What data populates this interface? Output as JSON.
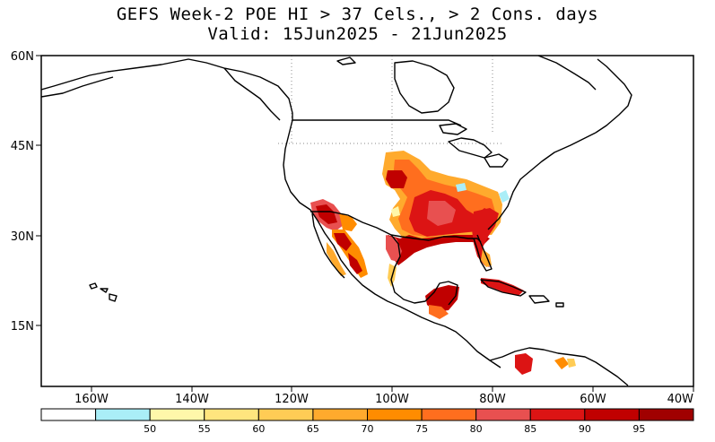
{
  "title": {
    "line1": "GEFS Week-2 POE HI > 37 Cels., > 2 Cons. days",
    "line2": "Valid: 15Jun2025 - 21Jun2025"
  },
  "map": {
    "lon_range": [
      -170,
      -40
    ],
    "lat_range": [
      5,
      60
    ],
    "lat_ticks": [
      "60N",
      "45N",
      "30N",
      "15N"
    ],
    "lon_ticks": [
      "160W",
      "140W",
      "120W",
      "100W",
      "80W",
      "60W",
      "40W"
    ],
    "gridlines": "dotted over land",
    "colors": {
      "coast": "#000000",
      "frame": "#000000",
      "grid": "#a0a0a0"
    }
  },
  "colorbar": {
    "bins": [
      {
        "color": "#ffffff"
      },
      {
        "color": "#aaeef7",
        "label": "50"
      },
      {
        "color": "#fff7aa",
        "label": "55"
      },
      {
        "color": "#ffe57e",
        "label": "60"
      },
      {
        "color": "#ffcc55",
        "label": "65"
      },
      {
        "color": "#ffaa2d",
        "label": "70"
      },
      {
        "color": "#ff8c00",
        "label": "75"
      },
      {
        "color": "#ff6e1e",
        "label": "80"
      },
      {
        "color": "#e85050",
        "label": "85"
      },
      {
        "color": "#dc1414",
        "label": "90"
      },
      {
        "color": "#c00000",
        "label": "95"
      },
      {
        "color": "#a00000"
      }
    ]
  },
  "hotspots": [
    {
      "name": "southern-plains",
      "color": "#dc1414"
    },
    {
      "name": "gulf-coast",
      "color": "#c00000"
    },
    {
      "name": "southwest-desert",
      "color": "#e85050"
    },
    {
      "name": "central-plains",
      "color": "#ff6e1e"
    },
    {
      "name": "yucatan",
      "color": "#c00000"
    },
    {
      "name": "cuba",
      "color": "#dc1414"
    },
    {
      "name": "northwest-mexico",
      "color": "#ff8c00"
    },
    {
      "name": "venezuela",
      "color": "#dc1414"
    }
  ]
}
